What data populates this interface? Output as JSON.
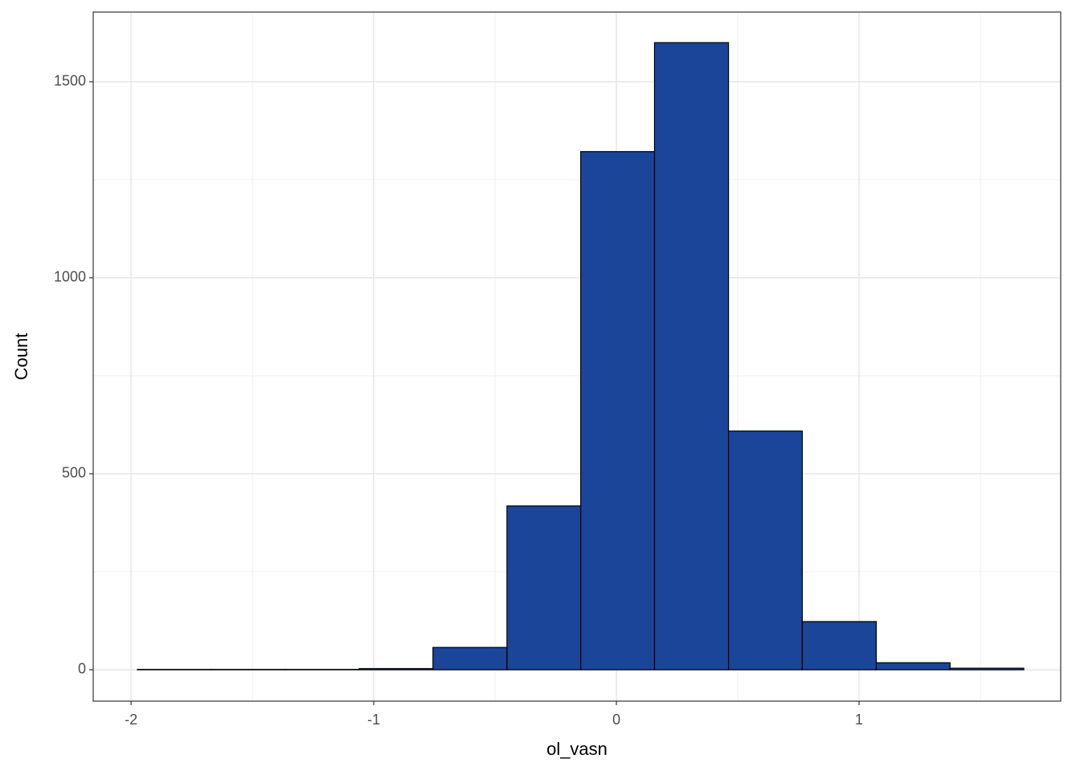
{
  "chart_data": {
    "type": "histogram",
    "x_label": "ol_vasn",
    "y_label": "Count",
    "bins": [
      -1.974,
      -1.669,
      -1.365,
      -1.06,
      -0.756,
      -0.451,
      -0.147,
      0.157,
      0.462,
      0.766,
      1.071,
      1.375,
      1.679
    ],
    "values": [
      1,
      1,
      1,
      3,
      57,
      418,
      1322,
      1600,
      609,
      123,
      18,
      4
    ],
    "color": "#1a4599",
    "edge_color": "#000000",
    "xlim": [
      -2.156,
      1.831
    ],
    "xticks": [
      -2,
      -1,
      0,
      1
    ],
    "minor_xticks": [
      -1.5,
      -0.5,
      0.5,
      1.5
    ],
    "ylim": [
      -80,
      1678
    ],
    "yticks": [
      0,
      500,
      1000,
      1500
    ],
    "minor_yticks": [
      250,
      750,
      1250
    ],
    "grid": true
  }
}
